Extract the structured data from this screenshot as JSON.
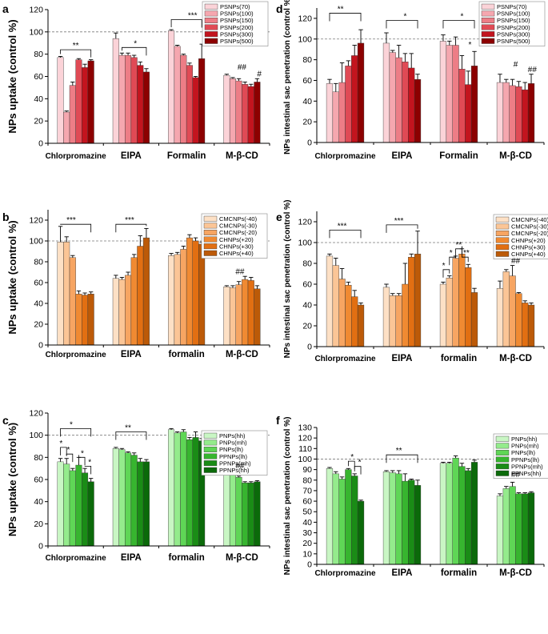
{
  "chart_data": [
    {
      "id": "a",
      "type": "bar",
      "letter": "a",
      "ylabel": "NPs uptake (control %)",
      "ylabel_size": "large",
      "ylim": [
        0,
        120
      ],
      "yticks": [
        0,
        20,
        40,
        60,
        80,
        100,
        120
      ],
      "categories": [
        "Chlorpromazine",
        "EIPA",
        "Formalin",
        "M-β-CD"
      ],
      "reference_line": 100,
      "series": [
        {
          "name": "PSNPs(70)",
          "color": "#fbd3d8",
          "values": [
            77,
            94,
            101,
            61
          ],
          "errors": [
            1,
            5,
            1,
            1
          ]
        },
        {
          "name": "PSNPs(100)",
          "color": "#f5a7af",
          "values": [
            28,
            79,
            87,
            58
          ],
          "errors": [
            1,
            2,
            1,
            1
          ]
        },
        {
          "name": "PSNPs(150)",
          "color": "#ed7d86",
          "values": [
            52,
            79,
            79,
            56
          ],
          "errors": [
            3,
            2,
            1,
            2
          ]
        },
        {
          "name": "PSNPs(200)",
          "color": "#e04a55",
          "values": [
            75,
            77,
            70,
            53
          ],
          "errors": [
            1,
            2,
            2,
            2
          ]
        },
        {
          "name": "PSNPs(300)",
          "color": "#c3141e",
          "values": [
            68,
            70,
            59,
            51
          ],
          "errors": [
            3,
            3,
            1,
            2
          ]
        },
        {
          "name": "PSNPs(500)",
          "color": "#8c0000",
          "values": [
            74,
            64,
            76,
            55
          ],
          "errors": [
            1,
            3,
            13,
            3
          ]
        }
      ],
      "annotations": [
        "**",
        "*",
        "***",
        "##",
        "#"
      ]
    },
    {
      "id": "b",
      "type": "bar",
      "letter": "b",
      "ylabel": "NPs uptake (control %)",
      "ylabel_size": "large",
      "ylim": [
        0,
        130
      ],
      "yticks": [
        0,
        20,
        40,
        60,
        80,
        100,
        120
      ],
      "categories": [
        "Chlorpromazine",
        "EIPA",
        "formalin",
        "M-β-CD"
      ],
      "reference_line": 100,
      "series": [
        {
          "name": "CMCNPs(-40)",
          "color": "#fde0c5",
          "values": [
            99,
            64,
            86,
            56
          ],
          "errors": [
            15,
            3,
            2,
            1
          ]
        },
        {
          "name": "CMCNPs(-30)",
          "color": "#fbc596",
          "values": [
            99,
            63,
            87,
            55
          ],
          "errors": [
            5,
            2,
            2,
            2
          ]
        },
        {
          "name": "CMCNPs(-20)",
          "color": "#f7a562",
          "values": [
            84,
            67,
            92,
            58
          ],
          "errors": [
            2,
            3,
            3,
            3
          ]
        },
        {
          "name": "CHNPs(+20)",
          "color": "#f08a32",
          "values": [
            49,
            84,
            103,
            63
          ],
          "errors": [
            3,
            3,
            3,
            3
          ]
        },
        {
          "name": "CHNPs(+30)",
          "color": "#e26f12",
          "values": [
            48,
            95,
            100,
            62
          ],
          "errors": [
            2,
            10,
            3,
            3
          ]
        },
        {
          "name": "CHNPs(+40)",
          "color": "#bc5a08",
          "values": [
            49,
            103,
            97,
            54
          ],
          "errors": [
            2,
            9,
            2,
            3
          ]
        }
      ],
      "annotations": [
        "***",
        "***",
        "##"
      ]
    },
    {
      "id": "c",
      "type": "bar",
      "letter": "c",
      "ylabel": "NPs uptake (control %)",
      "ylabel_size": "large",
      "ylim": [
        0,
        120
      ],
      "yticks": [
        0,
        20,
        40,
        60,
        80,
        100,
        120
      ],
      "categories": [
        "Chlorpromazine",
        "EIPA",
        "formalin",
        "M-β-CD"
      ],
      "reference_line": 100,
      "series": [
        {
          "name": "PNPs(hh)",
          "color": "#c9f6c4",
          "values": [
            76,
            88,
            105,
            65
          ],
          "errors": [
            3,
            1,
            1,
            1
          ]
        },
        {
          "name": "PNPs(mh)",
          "color": "#94eb8c",
          "values": [
            74,
            87,
            102,
            65
          ],
          "errors": [
            5,
            1,
            1,
            1
          ]
        },
        {
          "name": "PNPs(lh)",
          "color": "#5fd656",
          "values": [
            68,
            84,
            103,
            62
          ],
          "errors": [
            2,
            1,
            2,
            1
          ]
        },
        {
          "name": "PPNPs(lh)",
          "color": "#37b52f",
          "values": [
            73,
            82,
            96,
            57
          ],
          "errors": [
            7,
            2,
            2,
            1
          ]
        },
        {
          "name": "PPNPs(mh)",
          "color": "#1a8c16",
          "values": [
            66,
            76,
            98,
            57
          ],
          "errors": [
            4,
            3,
            5,
            1
          ]
        },
        {
          "name": "PPNPs(hh)",
          "color": "#0b6a0a",
          "values": [
            58,
            76,
            95,
            58
          ],
          "errors": [
            3,
            2,
            2,
            1
          ]
        }
      ],
      "annotations": [
        "*",
        "*",
        "*",
        "*",
        "*",
        "**",
        "##"
      ]
    },
    {
      "id": "d",
      "type": "bar",
      "letter": "d",
      "ylabel": "NPs intestinal sac penetration (control %)",
      "ylabel_size": "small",
      "ylim": [
        0,
        130
      ],
      "yticks": [
        0,
        20,
        40,
        60,
        80,
        100,
        120
      ],
      "categories": [
        "Chlorpromazine",
        "EIPA",
        "Formalin",
        "M-β-CD"
      ],
      "reference_line": 100,
      "series": [
        {
          "name": "PSNPs(70)",
          "color": "#fbd3d8",
          "values": [
            57,
            96,
            98,
            58
          ],
          "errors": [
            4,
            10,
            6,
            8
          ]
        },
        {
          "name": "PSNPs(100)",
          "color": "#f5a7af",
          "values": [
            49,
            87,
            94,
            58
          ],
          "errors": [
            8,
            2,
            4,
            3
          ]
        },
        {
          "name": "PSNPs(150)",
          "color": "#ed7d86",
          "values": [
            58,
            82,
            94,
            55
          ],
          "errors": [
            19,
            12,
            8,
            6
          ]
        },
        {
          "name": "PSNPs(200)",
          "color": "#e04a55",
          "values": [
            74,
            78,
            71,
            54
          ],
          "errors": [
            5,
            8,
            13,
            5
          ]
        },
        {
          "name": "PSNPs(300)",
          "color": "#c3141e",
          "values": [
            84,
            72,
            56,
            51
          ],
          "errors": [
            10,
            14,
            13,
            7
          ]
        },
        {
          "name": "PSNPs(500)",
          "color": "#8c0000",
          "values": [
            96,
            61,
            74,
            57
          ],
          "errors": [
            13,
            5,
            14,
            9
          ]
        }
      ],
      "annotations": [
        "**",
        "*",
        "*",
        "*",
        "#",
        "##"
      ]
    },
    {
      "id": "e",
      "type": "bar",
      "letter": "e",
      "ylabel": "NPs intestinal sac penetration (control %)",
      "ylabel_size": "small",
      "ylim": [
        0,
        130
      ],
      "yticks": [
        0,
        20,
        40,
        60,
        80,
        100,
        120
      ],
      "categories": [
        "Chlorpromazine",
        "EIPA",
        "formalin",
        "M-β-CD"
      ],
      "reference_line": 100,
      "series": [
        {
          "name": "CMCNPs(-40)",
          "color": "#fde0c5",
          "values": [
            87,
            57,
            60,
            56
          ],
          "errors": [
            2,
            3,
            2,
            7
          ]
        },
        {
          "name": "CMCNPs(-30)",
          "color": "#fbc596",
          "values": [
            78,
            49,
            66,
            72
          ],
          "errors": [
            7,
            2,
            2,
            2
          ]
        },
        {
          "name": "CMCNPs(-20)",
          "color": "#f7a562",
          "values": [
            65,
            49,
            85,
            68
          ],
          "errors": [
            10,
            2,
            2,
            10
          ]
        },
        {
          "name": "CHNPs(+20)",
          "color": "#f08a32",
          "values": [
            59,
            60,
            89,
            51
          ],
          "errors": [
            3,
            20,
            5,
            1
          ]
        },
        {
          "name": "CHNPs(+30)",
          "color": "#e26f12",
          "values": [
            48,
            86,
            76,
            42
          ],
          "errors": [
            6,
            3,
            3,
            2
          ]
        },
        {
          "name": "CHNPs(+40)",
          "color": "#bc5a08",
          "values": [
            40,
            89,
            52,
            40
          ],
          "errors": [
            2,
            22,
            4,
            2
          ]
        }
      ],
      "annotations": [
        "***",
        "***",
        "*",
        "*",
        "**",
        "**",
        "##"
      ]
    },
    {
      "id": "f",
      "type": "bar",
      "letter": "f",
      "ylabel": "NPs intestinal sac penetration (control %)",
      "ylabel_size": "small",
      "ylim": [
        0,
        130
      ],
      "yticks": [
        0,
        10,
        20,
        30,
        40,
        50,
        60,
        70,
        80,
        90,
        100,
        110,
        120,
        130
      ],
      "categories": [
        "Chlorpromazine",
        "EIPA",
        "formalin",
        "M-β-CD"
      ],
      "reference_line": 100,
      "series": [
        {
          "name": "PNPs(hh)",
          "color": "#c9f6c4",
          "values": [
            91,
            88,
            96,
            65
          ],
          "errors": [
            1,
            1,
            1,
            2
          ]
        },
        {
          "name": "PNPs(mh)",
          "color": "#94eb8c",
          "values": [
            86,
            87,
            96,
            72
          ],
          "errors": [
            2,
            2,
            1,
            2
          ]
        },
        {
          "name": "PNPs(lh)",
          "color": "#5fd656",
          "values": [
            81,
            86,
            101,
            74
          ],
          "errors": [
            2,
            3,
            2,
            4
          ]
        },
        {
          "name": "PPNPs(lh)",
          "color": "#37b52f",
          "values": [
            90,
            79,
            93,
            67
          ],
          "errors": [
            1,
            7,
            3,
            1
          ]
        },
        {
          "name": "PPNPs(mh)",
          "color": "#1a8c16",
          "values": [
            84,
            80,
            89,
            67
          ],
          "errors": [
            2,
            1,
            2,
            1
          ]
        },
        {
          "name": "PPNPs(hh)",
          "color": "#0b6a0a",
          "values": [
            60,
            75,
            97,
            68
          ],
          "errors": [
            1,
            5,
            2,
            1
          ]
        }
      ],
      "annotations": [
        "*",
        "*",
        "**",
        "##"
      ]
    }
  ]
}
